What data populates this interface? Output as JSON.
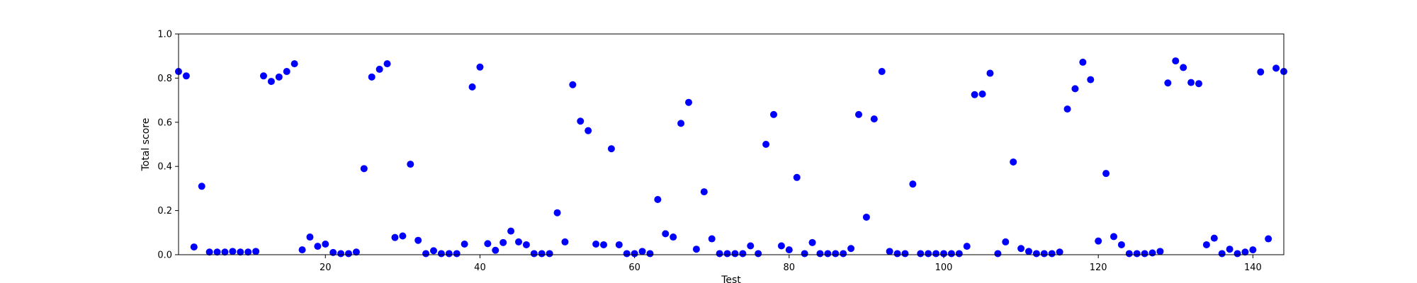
{
  "chart_data": {
    "type": "scatter",
    "xlabel": "Test",
    "ylabel": "Total score",
    "xlim": [
      1,
      144
    ],
    "ylim": [
      0,
      1
    ],
    "xticks": [
      20,
      40,
      60,
      80,
      100,
      120,
      140
    ],
    "yticks": [
      0.0,
      0.2,
      0.4,
      0.6,
      0.8,
      1.0
    ],
    "ytick_labels": [
      "0.0",
      "0.2",
      "0.4",
      "0.6",
      "0.8",
      "1.0"
    ],
    "grid": false,
    "marker_color": "#0000ff",
    "series": [
      {
        "x": [
          1,
          2,
          3,
          4,
          5,
          6,
          7,
          8,
          9,
          10,
          11,
          12,
          13,
          14,
          15,
          16,
          17,
          18,
          19,
          20,
          21,
          22,
          23,
          24,
          25,
          26,
          27,
          28,
          29,
          30,
          31,
          32,
          33,
          34,
          35,
          36,
          37,
          38,
          39,
          40,
          41,
          42,
          43,
          44,
          45,
          46,
          47,
          48,
          49,
          50,
          51,
          52,
          53,
          54,
          55,
          56,
          57,
          58,
          59,
          60,
          61,
          62,
          63,
          64,
          65,
          66,
          67,
          68,
          69,
          70,
          71,
          72,
          73,
          74,
          75,
          76,
          77,
          78,
          79,
          80,
          81,
          82,
          83,
          84,
          85,
          86,
          87,
          88,
          89,
          90,
          91,
          92,
          93,
          94,
          95,
          96,
          97,
          98,
          99,
          100,
          101,
          102,
          103,
          104,
          105,
          106,
          107,
          108,
          109,
          110,
          111,
          112,
          113,
          114,
          115,
          116,
          117,
          118,
          119,
          120,
          121,
          122,
          123,
          124,
          125,
          126,
          127,
          128,
          129,
          130,
          131,
          132,
          133,
          134,
          135,
          136,
          137,
          138,
          139,
          140,
          141,
          142,
          143,
          144
        ],
        "y": [
          0.83,
          0.81,
          0.035,
          0.31,
          0.012,
          0.012,
          0.012,
          0.015,
          0.012,
          0.012,
          0.015,
          0.81,
          0.785,
          0.805,
          0.83,
          0.865,
          0.022,
          0.08,
          0.038,
          0.048,
          0.01,
          0.005,
          0.005,
          0.012,
          0.39,
          0.805,
          0.84,
          0.865,
          0.078,
          0.085,
          0.41,
          0.065,
          0.005,
          0.018,
          0.005,
          0.005,
          0.005,
          0.048,
          0.76,
          0.85,
          0.05,
          0.02,
          0.055,
          0.107,
          0.058,
          0.045,
          0.005,
          0.005,
          0.005,
          0.19,
          0.058,
          0.77,
          0.605,
          0.562,
          0.048,
          0.045,
          0.48,
          0.045,
          0.005,
          0.005,
          0.015,
          0.005,
          0.25,
          0.095,
          0.08,
          0.595,
          0.69,
          0.025,
          0.285,
          0.072,
          0.005,
          0.005,
          0.005,
          0.005,
          0.04,
          0.005,
          0.5,
          0.635,
          0.04,
          0.022,
          0.35,
          0.005,
          0.055,
          0.005,
          0.005,
          0.005,
          0.005,
          0.028,
          0.635,
          0.17,
          0.615,
          0.83,
          0.015,
          0.005,
          0.005,
          0.32,
          0.005,
          0.005,
          0.005,
          0.005,
          0.005,
          0.005,
          0.038,
          0.725,
          0.728,
          0.822,
          0.005,
          0.058,
          0.42,
          0.028,
          0.015,
          0.005,
          0.005,
          0.005,
          0.012,
          0.66,
          0.752,
          0.872,
          0.793,
          0.062,
          0.368,
          0.082,
          0.045,
          0.005,
          0.005,
          0.005,
          0.008,
          0.015,
          0.778,
          0.878,
          0.848,
          0.78,
          0.775,
          0.045,
          0.075,
          0.005,
          0.025,
          0.005,
          0.012,
          0.022,
          0.828,
          0.072,
          0.845,
          0.83
        ]
      }
    ]
  }
}
